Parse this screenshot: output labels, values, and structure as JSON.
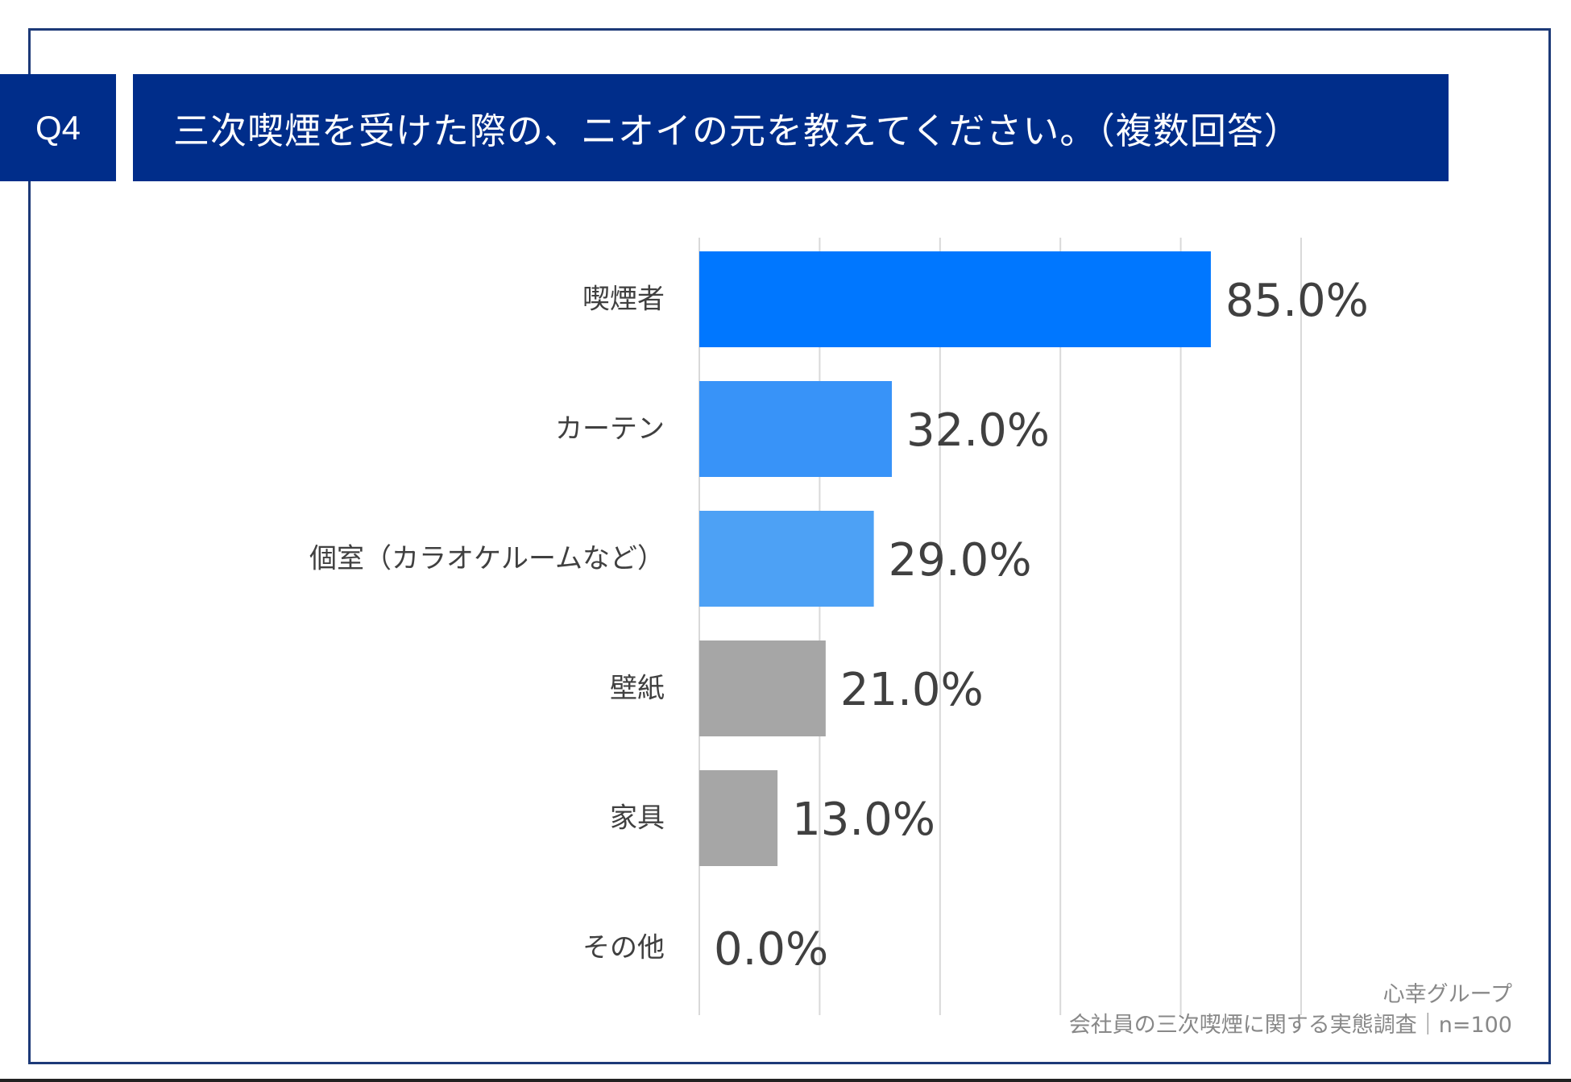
{
  "header": {
    "question_number": "Q4",
    "title": "三次喫煙を受けた際の、ニオイの元を教えてください。（複数回答）"
  },
  "chart_data": {
    "type": "bar",
    "orientation": "horizontal",
    "categories": [
      "喫煙者",
      "カーテン",
      "個室（カラオケルームなど）",
      "壁紙",
      "家具",
      "その他"
    ],
    "values": [
      85.0,
      32.0,
      29.0,
      21.0,
      13.0,
      0.0
    ],
    "data_labels": [
      "85.0%",
      "32.0%",
      "29.0%",
      "21.0%",
      "13.0%",
      "0.0%"
    ],
    "colors": [
      "#0077ff",
      "#3893f8",
      "#4da1f5",
      "#a6a6a6",
      "#a6a6a6",
      "#a6a6a6"
    ],
    "xlim": [
      0,
      100
    ],
    "grid_step": 20,
    "grid": true,
    "unit": "%"
  },
  "footer": {
    "source": "心幸グループ",
    "survey": "会社員の三次喫煙に関する実態調査｜n=100"
  }
}
